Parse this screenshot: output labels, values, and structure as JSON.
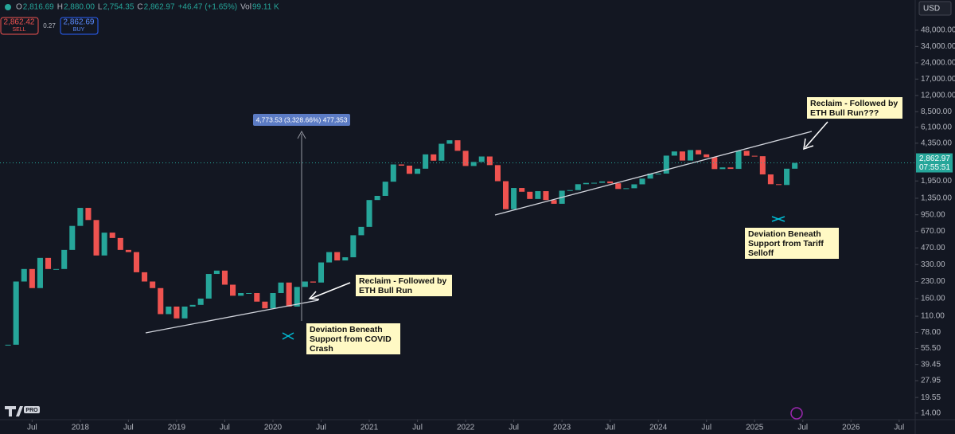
{
  "header": {
    "fields": [
      {
        "k": "O",
        "v": "2,816.69"
      },
      {
        "k": "H",
        "v": "2,880.00"
      },
      {
        "k": "L",
        "v": "2,754.35"
      },
      {
        "k": "C",
        "v": "2,862.97"
      }
    ],
    "change": "+46.47 (+1.65%)",
    "vol_label": "Vol",
    "vol": "99.11 K"
  },
  "trade": {
    "sell_price": "2,862.42",
    "sell": "SELL",
    "spread": "0.27",
    "buy_price": "2,862.69",
    "buy": "BUY"
  },
  "currency": "USD",
  "logo": "PRO",
  "chart_data": {
    "type": "candlestick",
    "log_scale": true,
    "grid": false,
    "up_color": "#26a69a",
    "down_color": "#ef5350",
    "x": [
      "2017-04",
      "2017-05",
      "2017-06",
      "2017-07",
      "2017-08",
      "2017-09",
      "2017-10",
      "2017-11",
      "2017-12",
      "2018-01",
      "2018-02",
      "2018-03",
      "2018-04",
      "2018-05",
      "2018-06",
      "2018-07",
      "2018-08",
      "2018-09",
      "2018-10",
      "2018-11",
      "2018-12",
      "2019-01",
      "2019-02",
      "2019-03",
      "2019-04",
      "2019-05",
      "2019-06",
      "2019-07",
      "2019-08",
      "2019-09",
      "2019-10",
      "2019-11",
      "2019-12",
      "2020-01",
      "2020-02",
      "2020-03",
      "2020-04",
      "2020-05",
      "2020-06",
      "2020-07",
      "2020-08",
      "2020-09",
      "2020-10",
      "2020-11",
      "2020-12",
      "2021-01",
      "2021-02",
      "2021-03",
      "2021-04",
      "2021-05",
      "2021-06",
      "2021-07",
      "2021-08",
      "2021-09",
      "2021-10",
      "2021-11",
      "2021-12",
      "2022-01",
      "2022-02",
      "2022-03",
      "2022-04",
      "2022-05",
      "2022-06",
      "2022-07",
      "2022-08",
      "2022-09",
      "2022-10",
      "2022-11",
      "2022-12",
      "2023-01",
      "2023-02",
      "2023-03",
      "2023-04",
      "2023-05",
      "2023-06",
      "2023-07",
      "2023-08",
      "2023-09",
      "2023-10",
      "2023-11",
      "2023-12",
      "2024-01",
      "2024-02",
      "2024-03",
      "2024-04",
      "2024-05",
      "2024-06",
      "2024-07",
      "2024-08",
      "2024-09",
      "2024-10",
      "2024-11",
      "2024-12",
      "2025-01",
      "2025-02",
      "2025-03",
      "2025-04",
      "2025-05",
      "2025-06"
    ],
    "series": [
      {
        "name": "ETH",
        "values": [
          60,
          230,
          300,
          200,
          380,
          300,
          300,
          450,
          750,
          1100,
          850,
          400,
          650,
          580,
          450,
          430,
          280,
          230,
          200,
          115,
          135,
          105,
          135,
          140,
          160,
          270,
          290,
          215,
          170,
          180,
          180,
          150,
          130,
          180,
          225,
          135,
          205,
          230,
          225,
          345,
          430,
          360,
          385,
          615,
          735,
          1300,
          1420,
          1920,
          2770,
          2700,
          2270,
          2530,
          3430,
          3000,
          4300,
          4630,
          3700,
          2680,
          2920,
          3280,
          2730,
          1940,
          1070,
          1680,
          1550,
          1330,
          1570,
          1300,
          1200,
          1585,
          1605,
          1820,
          1870,
          1875,
          1930,
          1855,
          1645,
          1670,
          1815,
          2050,
          2280,
          2280,
          3340,
          3650,
          3010,
          3760,
          3430,
          3230,
          2510,
          2600,
          2520,
          3700,
          3330,
          3300,
          2240,
          1820,
          1790,
          2530,
          2862.97
        ]
      }
    ],
    "ylim": [
      12.2,
      91300
    ],
    "yticks": [
      {
        "value": 14,
        "label": "14.00"
      },
      {
        "value": 19.55,
        "label": "19.55"
      },
      {
        "value": 27.95,
        "label": "27.95"
      },
      {
        "value": 39.45,
        "label": "39.45"
      },
      {
        "value": 55.5,
        "label": "55.50"
      },
      {
        "value": 78,
        "label": "78.00"
      },
      {
        "value": 110,
        "label": "110.00"
      },
      {
        "value": 160,
        "label": "160.00"
      },
      {
        "value": 230,
        "label": "230.00"
      },
      {
        "value": 330,
        "label": "330.00"
      },
      {
        "value": 470,
        "label": "470.00"
      },
      {
        "value": 670,
        "label": "670.00"
      },
      {
        "value": 950,
        "label": "950.00"
      },
      {
        "value": 1350,
        "label": "1,350.00"
      },
      {
        "value": 1950,
        "label": "1,950.00"
      },
      {
        "value": 4350,
        "label": "4,350.00"
      },
      {
        "value": 6100,
        "label": "6,100.00"
      },
      {
        "value": 8500,
        "label": "8,500.00"
      },
      {
        "value": 12000,
        "label": "12,000.00"
      },
      {
        "value": 17000,
        "label": "17,000.00"
      },
      {
        "value": 24000,
        "label": "24,000.00"
      },
      {
        "value": 34000,
        "label": "34,000.00"
      },
      {
        "value": 48000,
        "label": "48,000.00"
      }
    ],
    "xlim": [
      "2017-03",
      "2026-09"
    ],
    "xticks": [
      {
        "value": "2017-07",
        "label": "Jul"
      },
      {
        "value": "2018-01",
        "label": "2018"
      },
      {
        "value": "2018-07",
        "label": "Jul"
      },
      {
        "value": "2019-01",
        "label": "2019"
      },
      {
        "value": "2019-07",
        "label": "Jul"
      },
      {
        "value": "2020-01",
        "label": "2020"
      },
      {
        "value": "2020-07",
        "label": "Jul"
      },
      {
        "value": "2021-01",
        "label": "2021"
      },
      {
        "value": "2021-07",
        "label": "Jul"
      },
      {
        "value": "2022-01",
        "label": "2022"
      },
      {
        "value": "2022-07",
        "label": "Jul"
      },
      {
        "value": "2023-01",
        "label": "2023"
      },
      {
        "value": "2023-07",
        "label": "Jul"
      },
      {
        "value": "2024-01",
        "label": "2024"
      },
      {
        "value": "2024-07",
        "label": "Jul"
      },
      {
        "value": "2025-01",
        "label": "2025"
      },
      {
        "value": "2025-07",
        "label": "Jul"
      },
      {
        "value": "2026-01",
        "label": "2026"
      },
      {
        "value": "2026-07",
        "label": "Jul"
      }
    ],
    "price_tag": {
      "value": 2862.97,
      "label": "2,862.97",
      "countdown": "07:55:51"
    },
    "measure": "4,773.53 (3,328.66%) 477,353",
    "annotations": [
      {
        "lines": [
          "Reclaim - Followed by",
          "ETH Bull Run"
        ]
      },
      {
        "lines": [
          "Deviation Beneath",
          "Support from COVID",
          "Crash"
        ]
      },
      {
        "lines": [
          "Reclaim - Followed by",
          "ETH Bull Run???"
        ]
      },
      {
        "lines": [
          "Deviation Beneath",
          "Support from Tariff",
          "Selloff"
        ]
      }
    ]
  }
}
